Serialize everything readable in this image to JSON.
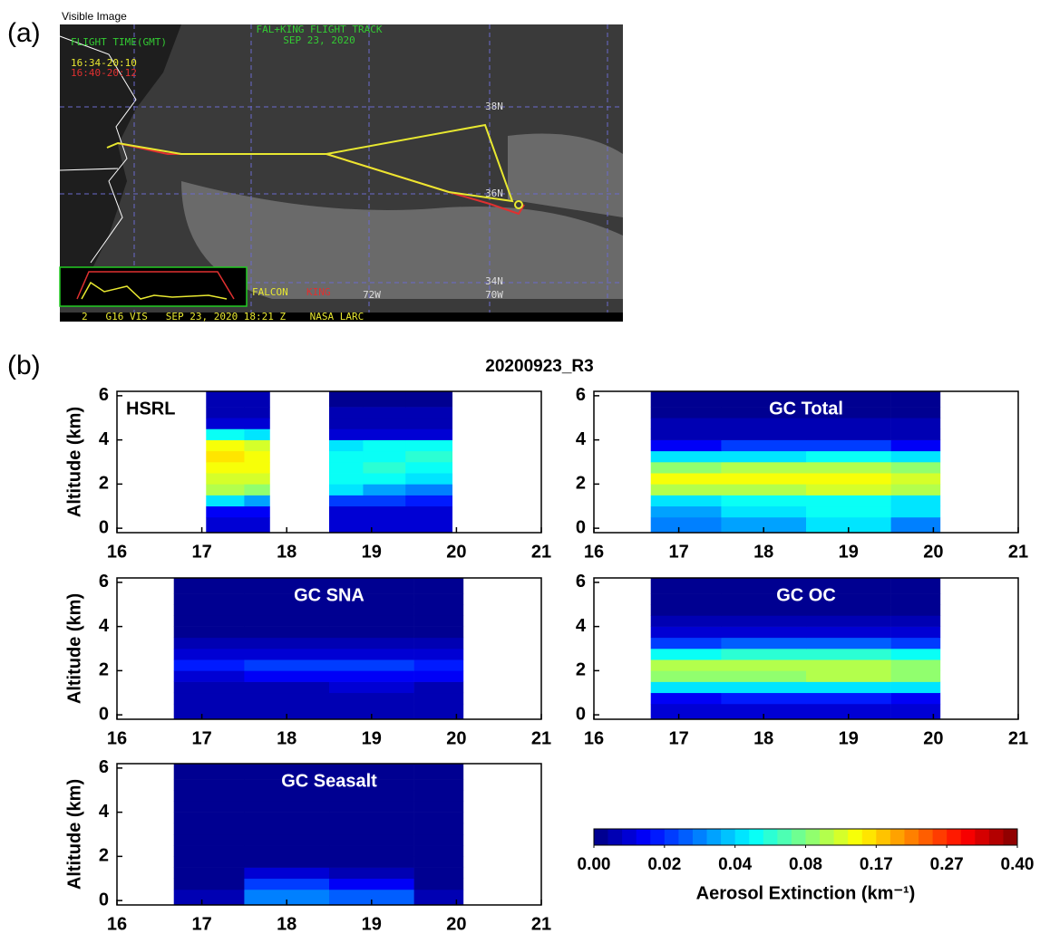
{
  "figure": {
    "panel_a": {
      "label": "(a)",
      "caption": "Visible Image",
      "track_title": "FAL+KING FLIGHT TRACK",
      "track_date": "SEP 23, 2020",
      "flight_time": "FLIGHT TIME(GMT)",
      "falcon_time": "16:34-20:10",
      "king_time": "16:40-20:12",
      "lat_labels": [
        "38N",
        "36N",
        "34N"
      ],
      "lon_labels": [
        "72W",
        "70W"
      ],
      "falcon": "FALCON",
      "king": "KING",
      "footer": "2   G16 VIS   SEP 23, 2020 18:21 Z    NASA LARC"
    },
    "panel_b": {
      "label": "(b)",
      "title": "20200923_R3"
    }
  },
  "chart_data": [
    {
      "type": "heatmap",
      "title": "HSRL",
      "title_color": "#000000",
      "ylabel": "Altitude (km)",
      "xlim": [
        16,
        21
      ],
      "ylim": [
        -0.2,
        6.2
      ],
      "xticks": [
        16,
        17,
        18,
        19,
        20,
        21
      ],
      "yticks": [
        0,
        2,
        4,
        6
      ],
      "x": [
        17.05,
        17.5,
        17.8,
        18.5,
        18.9,
        19.4,
        19.95
      ],
      "y": [
        -0.2,
        0.5,
        1,
        1.5,
        2,
        2.5,
        3,
        3.5,
        4,
        4.5,
        5,
        5.5,
        6.2
      ],
      "z": [
        [
          0.01,
          0.01,
          null,
          0.01,
          0.01,
          0.01
        ],
        [
          0.015,
          0.015,
          null,
          0.01,
          0.012,
          0.01
        ],
        [
          0.04,
          0.035,
          null,
          0.02,
          0.02,
          0.018
        ],
        [
          0.1,
          0.09,
          null,
          0.04,
          0.035,
          0.03
        ],
        [
          0.13,
          0.12,
          null,
          0.05,
          0.05,
          0.045
        ],
        [
          0.15,
          0.14,
          null,
          0.055,
          0.06,
          0.05
        ],
        [
          0.16,
          0.15,
          null,
          0.05,
          0.055,
          0.06
        ],
        [
          0.14,
          0.13,
          null,
          0.045,
          0.05,
          0.05
        ],
        [
          0.05,
          0.04,
          null,
          0.01,
          0.01,
          0.01
        ],
        [
          0.008,
          0.008,
          null,
          0.005,
          0.005,
          0.005
        ],
        [
          0.005,
          0.005,
          null,
          0.004,
          0.004,
          0.004
        ],
        [
          0.004,
          0.004,
          null,
          0.003,
          0.003,
          0.003
        ]
      ]
    },
    {
      "type": "heatmap",
      "title": "GC Total",
      "title_color": "#ffffff",
      "xlim": [
        16,
        21
      ],
      "ylim": [
        -0.2,
        6.2
      ],
      "xticks": [
        16,
        17,
        18,
        19,
        20,
        21
      ],
      "yticks": [
        0,
        2,
        4,
        6
      ],
      "x": [
        16.67,
        17.5,
        18.5,
        19.5,
        20.08
      ],
      "y": [
        -0.2,
        0.5,
        1,
        1.5,
        2,
        2.5,
        3,
        3.5,
        4,
        4.5,
        5,
        5.5,
        6.2
      ],
      "z": [
        [
          0.03,
          0.035,
          0.04,
          0.03
        ],
        [
          0.035,
          0.045,
          0.05,
          0.04
        ],
        [
          0.04,
          0.05,
          0.055,
          0.045
        ],
        [
          0.1,
          0.11,
          0.12,
          0.11
        ],
        [
          0.14,
          0.15,
          0.15,
          0.13
        ],
        [
          0.09,
          0.1,
          0.1,
          0.09
        ],
        [
          0.04,
          0.045,
          0.05,
          0.04
        ],
        [
          0.015,
          0.02,
          0.02,
          0.015
        ],
        [
          0.005,
          0.005,
          0.005,
          0.005
        ],
        [
          0.004,
          0.004,
          0.004,
          0.004
        ],
        [
          0.003,
          0.003,
          0.003,
          0.003
        ],
        [
          0.002,
          0.002,
          0.002,
          0.002
        ]
      ]
    },
    {
      "type": "heatmap",
      "title": "GC SNA",
      "title_color": "#ffffff",
      "ylabel": "Altitude (km)",
      "xlim": [
        16,
        21
      ],
      "ylim": [
        -0.2,
        6.2
      ],
      "xticks": [
        16,
        17,
        18,
        19,
        20,
        21
      ],
      "yticks": [
        0,
        2,
        4,
        6
      ],
      "x": [
        16.67,
        17.5,
        18.5,
        19.5,
        20.08
      ],
      "y": [
        -0.2,
        0.5,
        1,
        1.5,
        2,
        2.5,
        3,
        3.5,
        4,
        4.5,
        5,
        5.5,
        6.2
      ],
      "z": [
        [
          0.004,
          0.004,
          0.005,
          0.004
        ],
        [
          0.005,
          0.006,
          0.006,
          0.005
        ],
        [
          0.006,
          0.007,
          0.008,
          0.007
        ],
        [
          0.012,
          0.014,
          0.015,
          0.013
        ],
        [
          0.018,
          0.02,
          0.022,
          0.018
        ],
        [
          0.01,
          0.012,
          0.012,
          0.01
        ],
        [
          0.004,
          0.004,
          0.004,
          0.004
        ],
        [
          0.003,
          0.003,
          0.003,
          0.003
        ],
        [
          0.002,
          0.002,
          0.002,
          0.002
        ],
        [
          0.002,
          0.002,
          0.002,
          0.002
        ],
        [
          0.001,
          0.001,
          0.001,
          0.001
        ],
        [
          0.001,
          0.001,
          0.001,
          0.001
        ]
      ]
    },
    {
      "type": "heatmap",
      "title": "GC OC",
      "title_color": "#ffffff",
      "xlim": [
        16,
        21
      ],
      "ylim": [
        -0.2,
        6.2
      ],
      "xticks": [
        16,
        17,
        18,
        19,
        20,
        21
      ],
      "yticks": [
        0,
        2,
        4,
        6
      ],
      "x": [
        16.67,
        17.5,
        18.5,
        19.5,
        20.08
      ],
      "y": [
        -0.2,
        0.5,
        1,
        1.5,
        2,
        2.5,
        3,
        3.5,
        4,
        4.5,
        5,
        5.5,
        6.2
      ],
      "z": [
        [
          0.008,
          0.01,
          0.01,
          0.008
        ],
        [
          0.015,
          0.018,
          0.016,
          0.015
        ],
        [
          0.04,
          0.045,
          0.045,
          0.04
        ],
        [
          0.08,
          0.09,
          0.1,
          0.09
        ],
        [
          0.1,
          0.11,
          0.11,
          0.09
        ],
        [
          0.05,
          0.06,
          0.06,
          0.05
        ],
        [
          0.02,
          0.025,
          0.025,
          0.02
        ],
        [
          0.008,
          0.01,
          0.01,
          0.008
        ],
        [
          0.004,
          0.004,
          0.004,
          0.004
        ],
        [
          0.003,
          0.003,
          0.003,
          0.003
        ],
        [
          0.002,
          0.002,
          0.002,
          0.002
        ],
        [
          0.002,
          0.002,
          0.002,
          0.002
        ]
      ]
    },
    {
      "type": "heatmap",
      "title": "GC Seasalt",
      "title_color": "#ffffff",
      "ylabel": "Altitude (km)",
      "xlim": [
        16,
        21
      ],
      "ylim": [
        -0.2,
        6.2
      ],
      "xticks": [
        16,
        17,
        18,
        19,
        20,
        21
      ],
      "yticks": [
        0,
        2,
        4,
        6
      ],
      "x": [
        16.67,
        17.5,
        18.5,
        19.5,
        20.08
      ],
      "y": [
        -0.2,
        0.5,
        1,
        1.5,
        2,
        2.5,
        3,
        3.5,
        4,
        4.5,
        5,
        5.5,
        6.2
      ],
      "z": [
        [
          0.005,
          0.03,
          0.025,
          0.005
        ],
        [
          0.003,
          0.02,
          0.015,
          0.003
        ],
        [
          0.002,
          0.01,
          0.006,
          0.002
        ],
        [
          0.002,
          0.002,
          0.002,
          0.002
        ],
        [
          0.002,
          0.002,
          0.002,
          0.002
        ],
        [
          0.002,
          0.002,
          0.002,
          0.002
        ],
        [
          0.002,
          0.002,
          0.002,
          0.002
        ],
        [
          0.002,
          0.002,
          0.002,
          0.002
        ],
        [
          0.002,
          0.002,
          0.002,
          0.002
        ],
        [
          0.002,
          0.002,
          0.002,
          0.002
        ],
        [
          0.002,
          0.002,
          0.002,
          0.002
        ],
        [
          0.002,
          0.002,
          0.002,
          0.002
        ]
      ]
    },
    {
      "type": "colorbar",
      "label": "Aerosol Extinction (km⁻¹)",
      "levels": 30,
      "ticks": [
        {
          "value": 0,
          "label": "0.00"
        },
        {
          "value": 0.02,
          "label": "0.02"
        },
        {
          "value": 0.04,
          "label": "0.04"
        },
        {
          "value": 0.08,
          "label": "0.08"
        },
        {
          "value": 0.17,
          "label": "0.17"
        },
        {
          "value": 0.27,
          "label": "0.27"
        },
        {
          "value": 0.4,
          "label": "0.40"
        }
      ]
    }
  ]
}
